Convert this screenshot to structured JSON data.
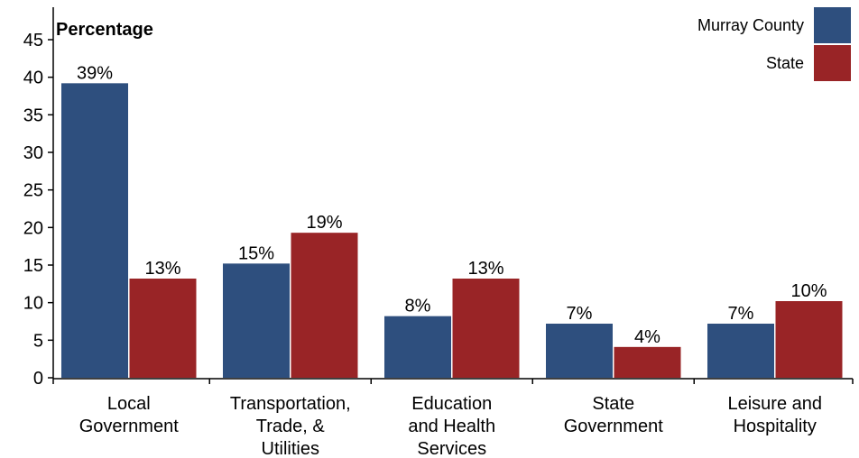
{
  "chart_data": {
    "type": "bar",
    "ylabel": "Percentage",
    "ylim": [
      0,
      48
    ],
    "yticks": [
      0,
      5,
      10,
      15,
      20,
      25,
      30,
      35,
      40,
      45
    ],
    "grid": false,
    "legend_position": "top-right",
    "categories": [
      [
        "Local",
        "Government"
      ],
      [
        "Transportation,",
        "Trade, &",
        "Utilities"
      ],
      [
        "Education",
        "and Health",
        "Services"
      ],
      [
        "State",
        "Government"
      ],
      [
        "Leisure and",
        "Hospitality"
      ]
    ],
    "series": [
      {
        "name": "Murray County",
        "color": "#2e4f7e",
        "values": [
          39.2,
          15.2,
          8.2,
          7.2,
          7.2
        ],
        "labels": [
          "39%",
          "15%",
          "8%",
          "7%",
          "7%"
        ]
      },
      {
        "name": "State",
        "color": "#992426",
        "values": [
          13.2,
          19.3,
          13.2,
          4.1,
          10.2
        ],
        "labels": [
          "13%",
          "19%",
          "13%",
          "4%",
          "10%"
        ]
      }
    ]
  }
}
